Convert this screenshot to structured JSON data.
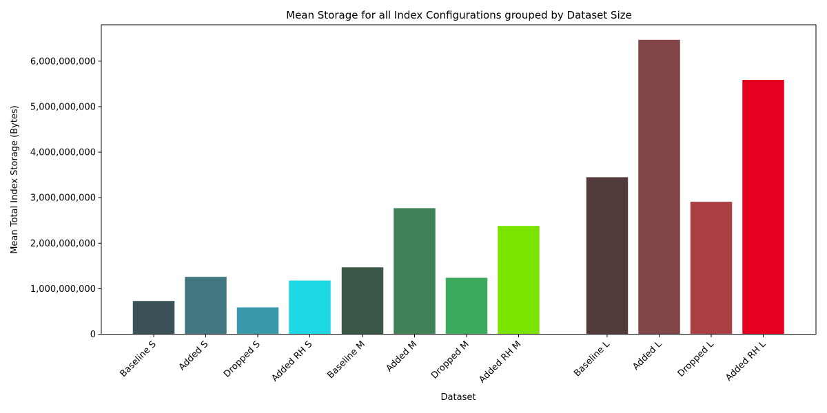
{
  "chart_data": {
    "type": "bar",
    "title": "Mean Storage for all Index Configurations grouped by Dataset Size",
    "xlabel": "Dataset",
    "ylabel": "Mean Total Index Storage (Bytes)",
    "ylim": [
      0,
      6800000000
    ],
    "yticks": [
      0,
      1000000000,
      2000000000,
      3000000000,
      4000000000,
      5000000000,
      6000000000
    ],
    "ytick_labels": [
      "0",
      "1,000,000,000",
      "2,000,000,000",
      "3,000,000,000",
      "4,000,000,000",
      "5,000,000,000",
      "6,000,000,000"
    ],
    "grid": false,
    "legend": "none",
    "categories": [
      "Baseline S",
      "Added S",
      "Dropped S",
      "Added RH S",
      "Baseline M",
      "Added M",
      "Dropped M",
      "Added RH M",
      "Baseline L",
      "Added L",
      "Dropped L",
      "Added RH L"
    ],
    "values": [
      730000000,
      1260000000,
      590000000,
      1180000000,
      1470000000,
      2770000000,
      1240000000,
      2380000000,
      3450000000,
      6470000000,
      2910000000,
      5590000000
    ],
    "colors": [
      "#3a5257",
      "#417780",
      "#3a99a8",
      "#1fd8e6",
      "#3a5647",
      "#3f8257",
      "#3dab5e",
      "#7be300",
      "#533a3b",
      "#824648",
      "#aa4045",
      "#e6001f"
    ]
  }
}
